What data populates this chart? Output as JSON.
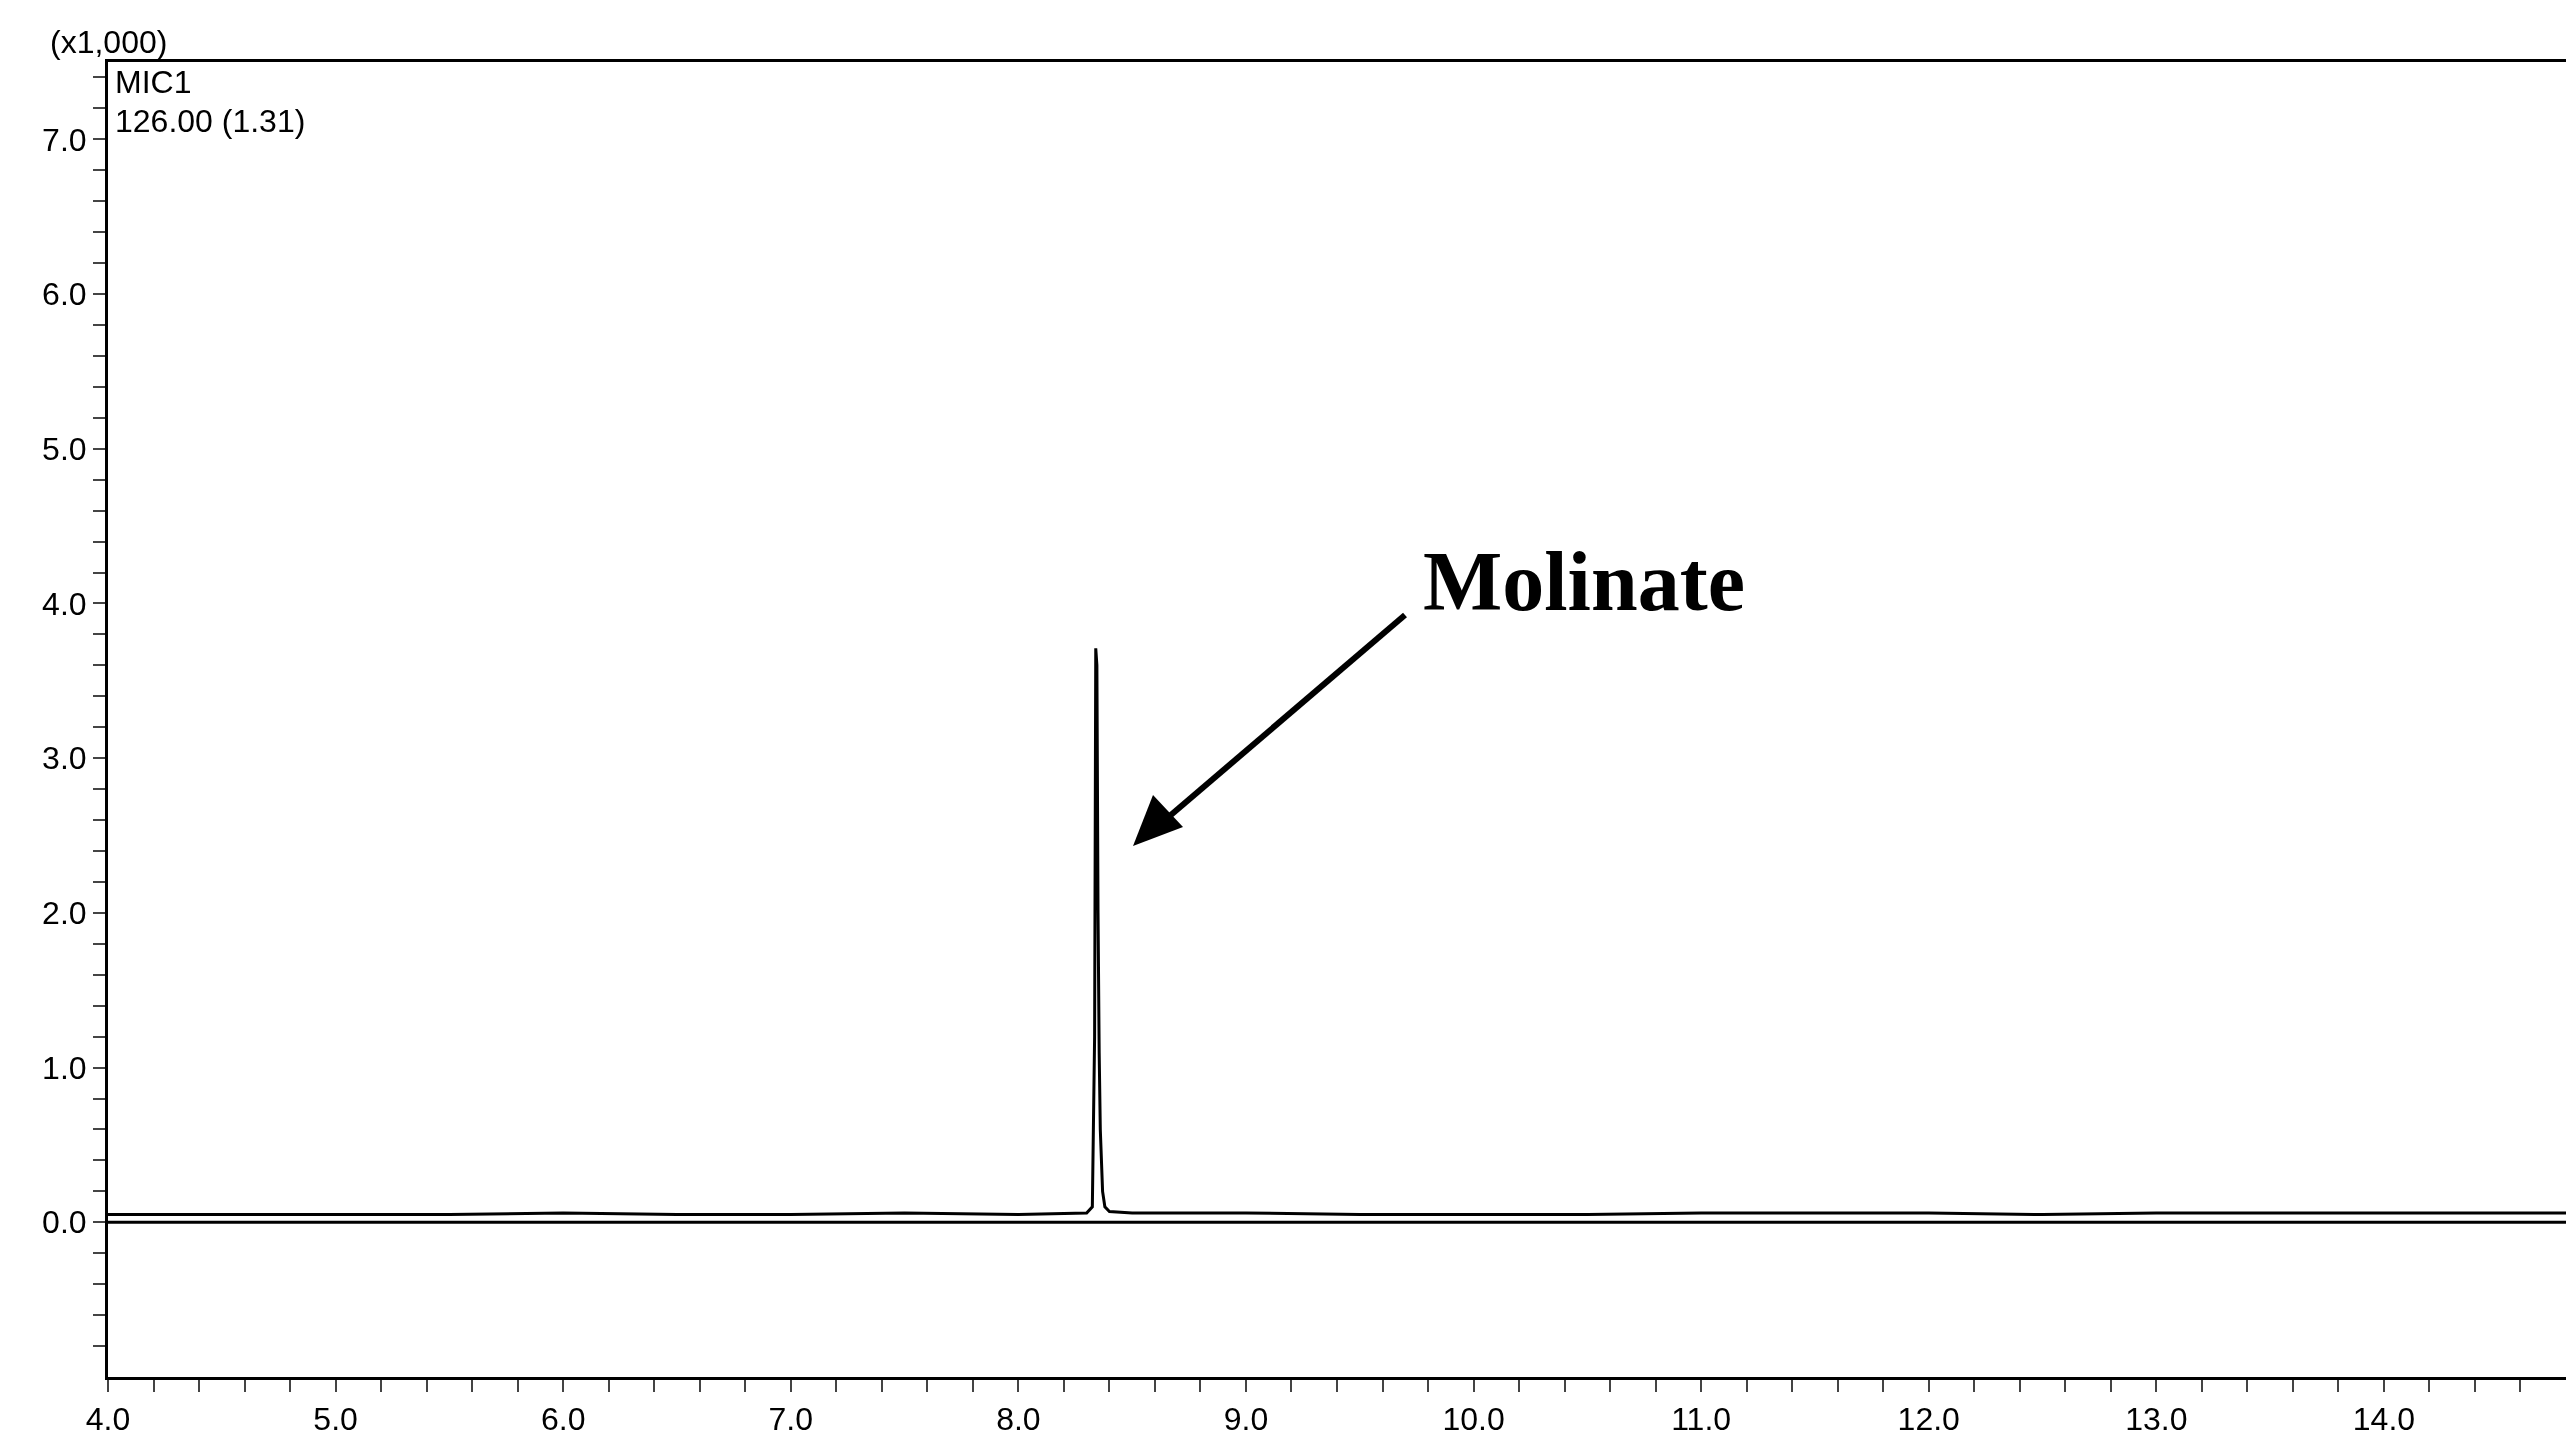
{
  "chart_data": {
    "type": "line",
    "ylabel": "(x1,000)",
    "annotations": [
      "MIC1",
      "126.00 (1.31)",
      "Molinate"
    ],
    "x": [
      4.0,
      4.5,
      5.0,
      5.5,
      6.0,
      6.5,
      7.0,
      7.5,
      8.0,
      8.3,
      8.325,
      8.335,
      8.34,
      8.345,
      8.35,
      8.355,
      8.36,
      8.37,
      8.38,
      8.4,
      8.5,
      9.0,
      9.5,
      10.0,
      10.5,
      11.0,
      11.5,
      12.0,
      12.5,
      13.0,
      13.5,
      14.0,
      14.5,
      14.8
    ],
    "series": [
      {
        "color": "#000000",
        "values": [
          0.05,
          0.05,
          0.05,
          0.05,
          0.06,
          0.05,
          0.05,
          0.06,
          0.05,
          0.06,
          0.1,
          1.2,
          3.71,
          3.6,
          2.0,
          1.1,
          0.6,
          0.2,
          0.1,
          0.07,
          0.06,
          0.06,
          0.05,
          0.05,
          0.05,
          0.06,
          0.06,
          0.06,
          0.05,
          0.06,
          0.06,
          0.06,
          0.06,
          0.06
        ]
      }
    ],
    "ref_lines": [
      {
        "axis": "y",
        "value": 0,
        "color": "#000000"
      }
    ],
    "xlim": [
      4.0,
      14.8
    ],
    "ylim": [
      -1.0,
      7.5
    ],
    "xticks": [
      {
        "value": 4,
        "label": "4.0"
      },
      {
        "value": 4.2,
        "label": null
      },
      {
        "value": 4.4,
        "label": null
      },
      {
        "value": 4.6,
        "label": null
      },
      {
        "value": 4.8,
        "label": null
      },
      {
        "value": 5,
        "label": "5.0"
      },
      {
        "value": 5.2,
        "label": null
      },
      {
        "value": 5.4,
        "label": null
      },
      {
        "value": 5.6,
        "label": null
      },
      {
        "value": 5.8,
        "label": null
      },
      {
        "value": 6,
        "label": "6.0"
      },
      {
        "value": 6.2,
        "label": null
      },
      {
        "value": 6.4,
        "label": null
      },
      {
        "value": 6.6,
        "label": null
      },
      {
        "value": 6.8,
        "label": null
      },
      {
        "value": 7,
        "label": "7.0"
      },
      {
        "value": 7.2,
        "label": null
      },
      {
        "value": 7.4,
        "label": null
      },
      {
        "value": 7.6,
        "label": null
      },
      {
        "value": 7.8,
        "label": null
      },
      {
        "value": 8,
        "label": "8.0"
      },
      {
        "value": 8.2,
        "label": null
      },
      {
        "value": 8.4,
        "label": null
      },
      {
        "value": 8.6,
        "label": null
      },
      {
        "value": 8.8,
        "label": null
      },
      {
        "value": 9,
        "label": "9.0"
      },
      {
        "value": 9.2,
        "label": null
      },
      {
        "value": 9.4,
        "label": null
      },
      {
        "value": 9.6,
        "label": null
      },
      {
        "value": 9.8,
        "label": null
      },
      {
        "value": 10,
        "label": "10.0"
      },
      {
        "value": 10.2,
        "label": null
      },
      {
        "value": 10.4,
        "label": null
      },
      {
        "value": 10.6,
        "label": null
      },
      {
        "value": 10.8,
        "label": null
      },
      {
        "value": 11,
        "label": "11.0"
      },
      {
        "value": 11.2,
        "label": null
      },
      {
        "value": 11.4,
        "label": null
      },
      {
        "value": 11.6,
        "label": null
      },
      {
        "value": 11.8,
        "label": null
      },
      {
        "value": 12,
        "label": "12.0"
      },
      {
        "value": 12.2,
        "label": null
      },
      {
        "value": 12.4,
        "label": null
      },
      {
        "value": 12.6,
        "label": null
      },
      {
        "value": 12.8,
        "label": null
      },
      {
        "value": 13,
        "label": "13.0"
      },
      {
        "value": 13.2,
        "label": null
      },
      {
        "value": 13.4,
        "label": null
      },
      {
        "value": 13.6,
        "label": null
      },
      {
        "value": 13.8,
        "label": null
      },
      {
        "value": 14,
        "label": "14.0"
      },
      {
        "value": 14.2,
        "label": null
      },
      {
        "value": 14.4,
        "label": null
      },
      {
        "value": 14.6,
        "label": null
      }
    ],
    "yticks": [
      {
        "value": -0.8,
        "label": null
      },
      {
        "value": -0.6,
        "label": null
      },
      {
        "value": -0.4,
        "label": null
      },
      {
        "value": -0.2,
        "label": null
      },
      {
        "value": 0,
        "label": "0.0"
      },
      {
        "value": 0.2,
        "label": null
      },
      {
        "value": 0.4,
        "label": null
      },
      {
        "value": 0.6,
        "label": null
      },
      {
        "value": 0.8,
        "label": null
      },
      {
        "value": 1,
        "label": "1.0"
      },
      {
        "value": 1.2,
        "label": null
      },
      {
        "value": 1.4,
        "label": null
      },
      {
        "value": 1.6,
        "label": null
      },
      {
        "value": 1.8,
        "label": null
      },
      {
        "value": 2,
        "label": "2.0"
      },
      {
        "value": 2.2,
        "label": null
      },
      {
        "value": 2.4,
        "label": null
      },
      {
        "value": 2.6,
        "label": null
      },
      {
        "value": 2.8,
        "label": null
      },
      {
        "value": 3,
        "label": "3.0"
      },
      {
        "value": 3.2,
        "label": null
      },
      {
        "value": 3.4,
        "label": null
      },
      {
        "value": 3.6,
        "label": null
      },
      {
        "value": 3.8,
        "label": null
      },
      {
        "value": 4,
        "label": "4.0"
      },
      {
        "value": 4.2,
        "label": null
      },
      {
        "value": 4.4,
        "label": null
      },
      {
        "value": 4.6,
        "label": null
      },
      {
        "value": 4.8,
        "label": null
      },
      {
        "value": 5,
        "label": "5.0"
      },
      {
        "value": 5.2,
        "label": null
      },
      {
        "value": 5.4,
        "label": null
      },
      {
        "value": 5.6,
        "label": null
      },
      {
        "value": 5.8,
        "label": null
      },
      {
        "value": 6,
        "label": "6.0"
      },
      {
        "value": 6.2,
        "label": null
      },
      {
        "value": 6.4,
        "label": null
      },
      {
        "value": 6.6,
        "label": null
      },
      {
        "value": 6.8,
        "label": null
      },
      {
        "value": 7,
        "label": "7.0"
      },
      {
        "value": 7.2,
        "label": null
      },
      {
        "value": 7.4,
        "label": null
      }
    ],
    "marker": "none",
    "line_style": "solid"
  }
}
